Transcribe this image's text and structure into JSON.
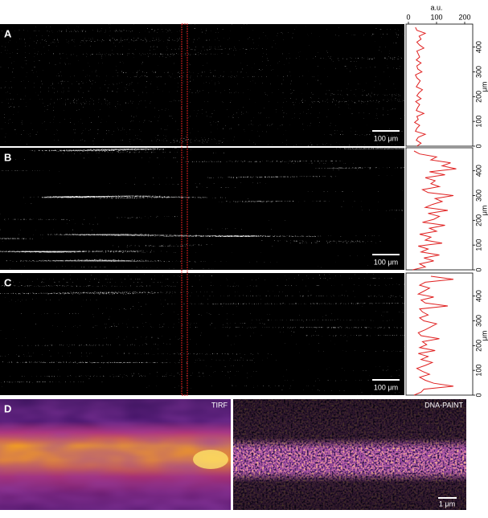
{
  "panels": [
    {
      "label": "A",
      "scale_bar": "100 μm",
      "profile": {
        "x_label": "a.u.",
        "y_label": "μm",
        "xlim": [
          0,
          200
        ],
        "xticks": [
          0,
          100,
          200
        ],
        "ylim": [
          0,
          480
        ],
        "yticks": [
          0,
          100,
          200,
          300,
          400
        ],
        "values": [
          30,
          45,
          28,
          35,
          60,
          25,
          30,
          40,
          22,
          35,
          30,
          55,
          28,
          33,
          40,
          26,
          45,
          30,
          38,
          50,
          28,
          35,
          42,
          30,
          25,
          48,
          33,
          30,
          45,
          28,
          40,
          35,
          30,
          55,
          40,
          30,
          45,
          38,
          60,
          30,
          25
        ]
      }
    },
    {
      "label": "B",
      "scale_bar": "100 μm",
      "profile": {
        "y_label": "μm",
        "xlim": [
          0,
          200
        ],
        "ylim": [
          0,
          480
        ],
        "yticks": [
          0,
          100,
          200,
          300,
          400
        ],
        "values": [
          15,
          60,
          40,
          90,
          55,
          110,
          45,
          70,
          35,
          120,
          60,
          80,
          40,
          100,
          75,
          130,
          50,
          90,
          110,
          70,
          140,
          60,
          85,
          120,
          95,
          160,
          70,
          50,
          110,
          80,
          95,
          60,
          130,
          75,
          170,
          120,
          150,
          80,
          100,
          40,
          20
        ]
      }
    },
    {
      "label": "C",
      "scale_bar": "100 μm",
      "profile": {
        "y_label": "μm",
        "xlim": [
          0,
          200
        ],
        "ylim": [
          0,
          480
        ],
        "yticks": [
          0,
          100,
          200,
          300,
          400
        ],
        "values": [
          20,
          45,
          55,
          160,
          90,
          60,
          40,
          75,
          50,
          30,
          60,
          85,
          45,
          70,
          35,
          95,
          40,
          65,
          50,
          110,
          45,
          35,
          60,
          80,
          100,
          55,
          40,
          70,
          50,
          40,
          140,
          60,
          45,
          90,
          35,
          55,
          75,
          40,
          60,
          160,
          80
        ]
      }
    }
  ],
  "profile_positions": [
    0,
    12,
    24,
    36,
    48,
    60,
    72,
    84,
    96,
    108,
    120,
    132,
    144,
    156,
    168,
    180,
    192,
    204,
    216,
    228,
    240,
    252,
    264,
    276,
    288,
    300,
    312,
    324,
    336,
    348,
    360,
    372,
    384,
    396,
    408,
    420,
    432,
    444,
    456,
    468,
    480
  ],
  "panel_d": {
    "label": "D",
    "left_title": "TIRF",
    "right_title": "DNA-PAINT",
    "scale_bar": "1 μm"
  }
}
